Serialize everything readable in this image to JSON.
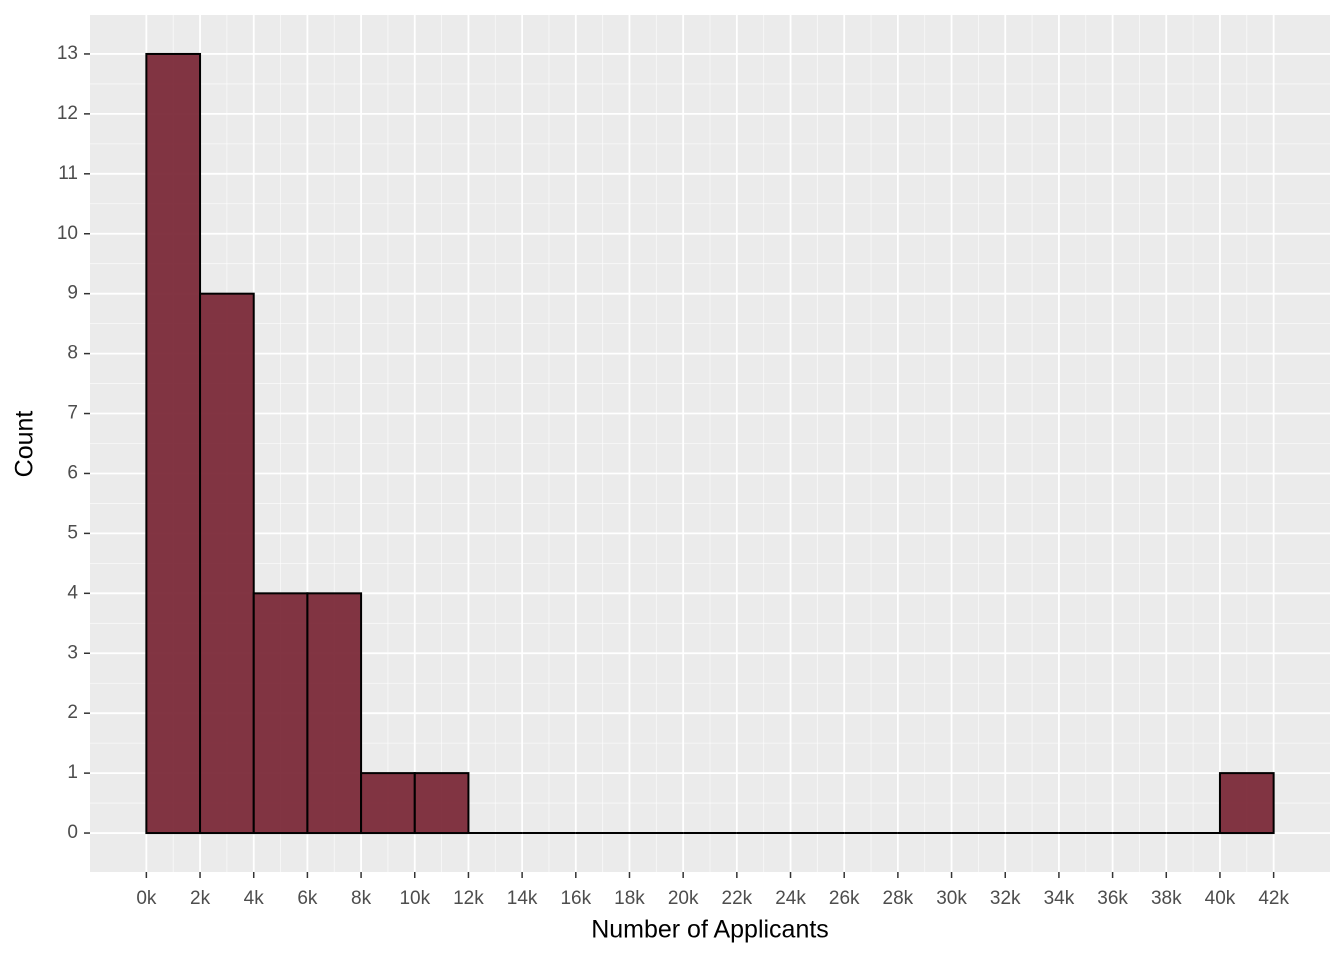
{
  "chart_data": {
    "type": "histogram",
    "xlabel": "Number of Applicants",
    "ylabel": "Count",
    "bins": [
      0,
      2000,
      4000,
      6000,
      8000,
      10000,
      12000,
      14000,
      16000,
      18000,
      20000,
      22000,
      24000,
      26000,
      28000,
      30000,
      32000,
      34000,
      36000,
      38000,
      40000,
      42000
    ],
    "values": [
      13,
      9,
      4,
      4,
      1,
      1,
      0,
      0,
      0,
      0,
      0,
      0,
      0,
      0,
      0,
      0,
      0,
      0,
      0,
      0,
      1
    ],
    "color": "#7b2a39",
    "edgecolor": "#000000",
    "xlim": [
      -2100,
      44100
    ],
    "ylim": [
      -0.65,
      13.65
    ],
    "xticks": [
      {
        "value": 0,
        "label": "0k"
      },
      {
        "value": 2000,
        "label": "2k"
      },
      {
        "value": 4000,
        "label": "4k"
      },
      {
        "value": 6000,
        "label": "6k"
      },
      {
        "value": 8000,
        "label": "8k"
      },
      {
        "value": 10000,
        "label": "10k"
      },
      {
        "value": 12000,
        "label": "12k"
      },
      {
        "value": 14000,
        "label": "14k"
      },
      {
        "value": 16000,
        "label": "16k"
      },
      {
        "value": 18000,
        "label": "18k"
      },
      {
        "value": 20000,
        "label": "20k"
      },
      {
        "value": 22000,
        "label": "22k"
      },
      {
        "value": 24000,
        "label": "24k"
      },
      {
        "value": 26000,
        "label": "26k"
      },
      {
        "value": 28000,
        "label": "28k"
      },
      {
        "value": 30000,
        "label": "30k"
      },
      {
        "value": 32000,
        "label": "32k"
      },
      {
        "value": 34000,
        "label": "34k"
      },
      {
        "value": 36000,
        "label": "36k"
      },
      {
        "value": 38000,
        "label": "38k"
      },
      {
        "value": 40000,
        "label": "40k"
      },
      {
        "value": 42000,
        "label": "42k"
      }
    ],
    "yticks": [
      0,
      1,
      2,
      3,
      4,
      5,
      6,
      7,
      8,
      9,
      10,
      11,
      12,
      13
    ],
    "grid": true
  }
}
